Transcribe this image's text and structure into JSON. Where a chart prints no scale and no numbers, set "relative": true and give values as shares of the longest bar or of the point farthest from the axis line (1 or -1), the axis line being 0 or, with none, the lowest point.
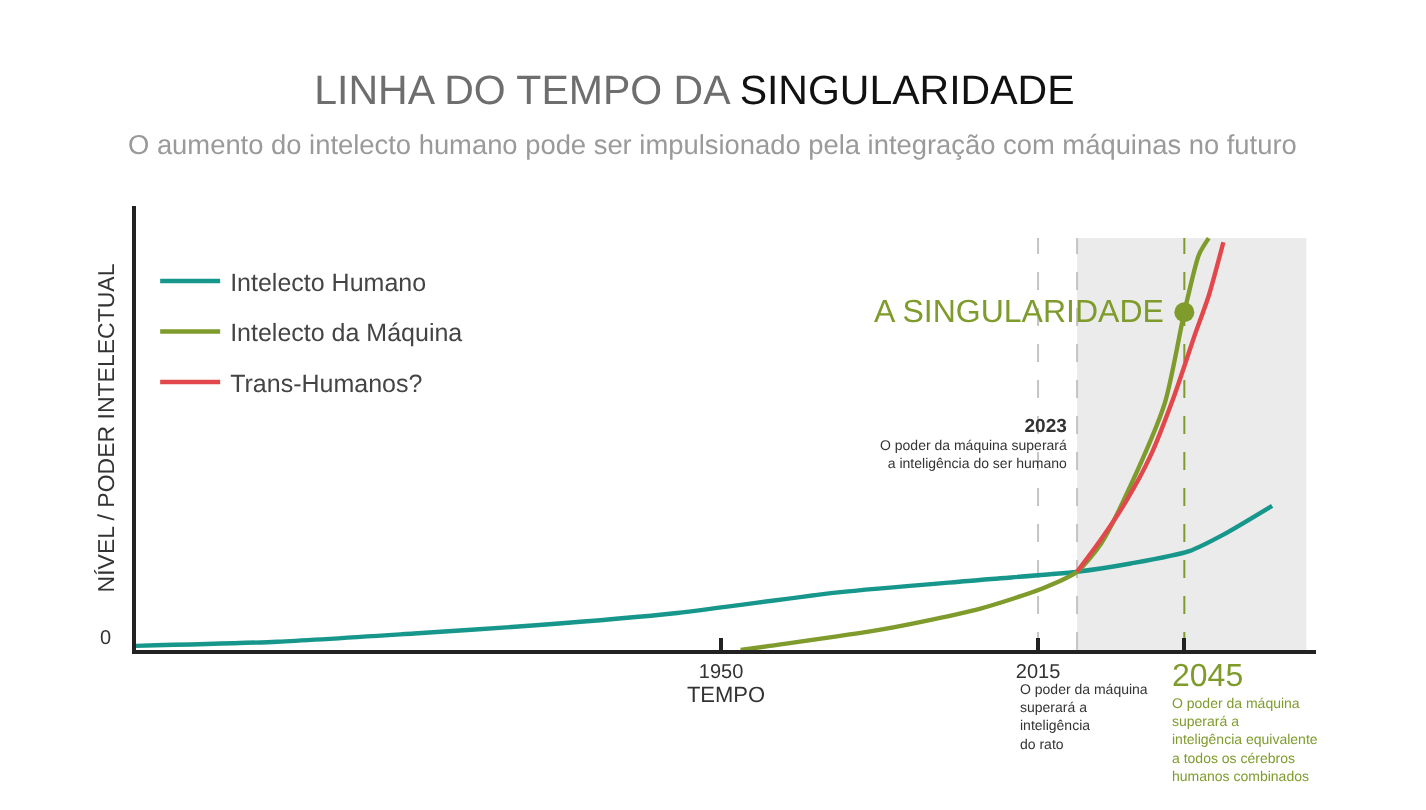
{
  "chart_data": {
    "type": "line",
    "title": "LINHA DO TEMPO DA SINGULARIDADE",
    "subtitle": "O aumento do intelecto humano pode ser impulsionado pela integração com máquinas no futuro",
    "xlabel": "TEMPO",
    "ylabel": "NÍVEL / PODER INTELECTUAL",
    "relative": true,
    "xlim": [
      1830,
      2072
    ],
    "xticks": [
      1950,
      2015,
      {
        "value": 2045,
        "label": null
      }
    ],
    "legend": "top left",
    "series": [
      {
        "name": "Intelecto Humano",
        "color": "#17978b",
        "x": [
          1830,
          1859,
          1887,
          1912,
          1941,
          1974,
          2003,
          2023,
          2034,
          2046,
          2053,
          2063
        ],
        "values": [
          0.01,
          0.02,
          0.04,
          0.06,
          0.09,
          0.14,
          0.17,
          0.19,
          0.21,
          0.24,
          0.28,
          0.35
        ]
      },
      {
        "name": "Intelecto da Máquina",
        "color": "#7f9b2c",
        "x": [
          1954,
          1960,
          1983,
          2003,
          2016,
          2023,
          2028,
          2034,
          2041,
          2045,
          2048,
          2050
        ],
        "values": [
          0,
          0.01,
          0.05,
          0.1,
          0.15,
          0.19,
          0.26,
          0.4,
          0.6,
          0.82,
          0.96,
          1.0
        ]
      },
      {
        "name": "Trans-Humanos?",
        "color": "#e2474c",
        "x": [
          2023,
          2028,
          2033,
          2038,
          2043,
          2047,
          2050,
          2053
        ],
        "values": [
          0.19,
          0.27,
          0.36,
          0.47,
          0.62,
          0.76,
          0.86,
          0.99
        ]
      },
      {
        "type": "scatter",
        "color": "#7f9b2c",
        "x": [
          2045
        ],
        "values": [
          0.82
        ]
      }
    ],
    "annotations": [
      {
        "text": "A SINGULARIDADE",
        "x": 2045,
        "y": 0.82
      },
      "0"
    ],
    "ref_lines": [
      {
        "axis": "x",
        "value": 2015,
        "line_style": "dashed",
        "label": "O poder da máquina\nsuperará a\ninteligência\ndo rato"
      },
      {
        "axis": "x",
        "value": 2023,
        "line_style": "dashed",
        "label": "2023\nO poder da máquina superará\na inteligência do ser humano"
      },
      {
        "axis": "x",
        "value": 2045,
        "line_style": "dashed",
        "color": "#7f9b2c",
        "label": "2045\nO poder da máquina\nsuperará a\ninteligência equivalente\na todos os cérebros\nhumanos combinados"
      }
    ],
    "bands": [
      {
        "axis": "x",
        "from": 2023,
        "to": 2070,
        "color": "#ebebeb"
      }
    ]
  }
}
